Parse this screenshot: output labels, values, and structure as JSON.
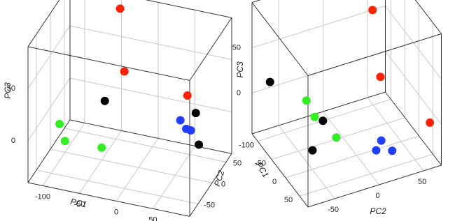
{
  "chart_data": [
    {
      "type": "scatter3d",
      "xlabel": "PC1",
      "ylabel": "PC2",
      "zlabel": "PC3",
      "xlim": [
        -120,
        100
      ],
      "ylim": [
        -80,
        70
      ],
      "zlim": [
        -40,
        90
      ],
      "xticks": [
        -100,
        -50,
        0,
        50
      ],
      "yticks": [
        -50,
        0,
        50
      ],
      "zticks": [
        0,
        50
      ],
      "series": [
        {
          "color": "#ff2200",
          "x": [
            -48,
            -27,
            55
          ],
          "y": [
            60,
            20,
            30
          ],
          "z": [
            81,
            40,
            25
          ]
        },
        {
          "color": "#000000",
          "x": [
            -46,
            74,
            82
          ],
          "y": [
            0,
            10,
            0
          ],
          "z": [
            17,
            19,
            -6
          ]
        },
        {
          "color": "#1f3cff",
          "x": [
            53,
            61,
            71
          ],
          "y": [
            10,
            10,
            0
          ],
          "z": [
            9,
            2,
            6
          ]
        },
        {
          "color": "#33ee22",
          "x": [
            -100,
            -85,
            -35
          ],
          "y": [
            -20,
            -40,
            -40
          ],
          "z": [
            -5,
            -11,
            -10
          ]
        }
      ]
    },
    {
      "type": "scatter3d",
      "xlabel": "PC1",
      "ylabel": "PC2",
      "zlabel": "PC3",
      "xlim": [
        -120,
        80
      ],
      "ylim": [
        -80,
        70
      ],
      "zlim": [
        -45,
        100
      ],
      "xticks": [
        -100,
        -50,
        0,
        50
      ],
      "yticks": [
        -50,
        0,
        50
      ],
      "zticks": [
        0,
        50
      ],
      "series": [
        {
          "color": "#ff2200",
          "x": [
            -26,
            -17,
            58
          ],
          "y": [
            26,
            32,
            64
          ],
          "z": [
            97,
            25,
            -5
          ]
        },
        {
          "color": "#000000",
          "x": [
            -100,
            0,
            20
          ],
          "y": [
            -66,
            -38,
            -56
          ],
          "z": [
            16,
            5,
            -14
          ]
        },
        {
          "color": "#33ee22",
          "x": [
            -40,
            -20,
            0
          ],
          "y": [
            -44,
            -41,
            -23
          ],
          "z": [
            13,
            2,
            -18
          ]
        },
        {
          "color": "#1f3cff",
          "x": [
            40,
            60,
            60
          ],
          "y": [
            15,
            21,
            3
          ],
          "z": [
            -17,
            -22,
            -16
          ]
        }
      ]
    }
  ]
}
